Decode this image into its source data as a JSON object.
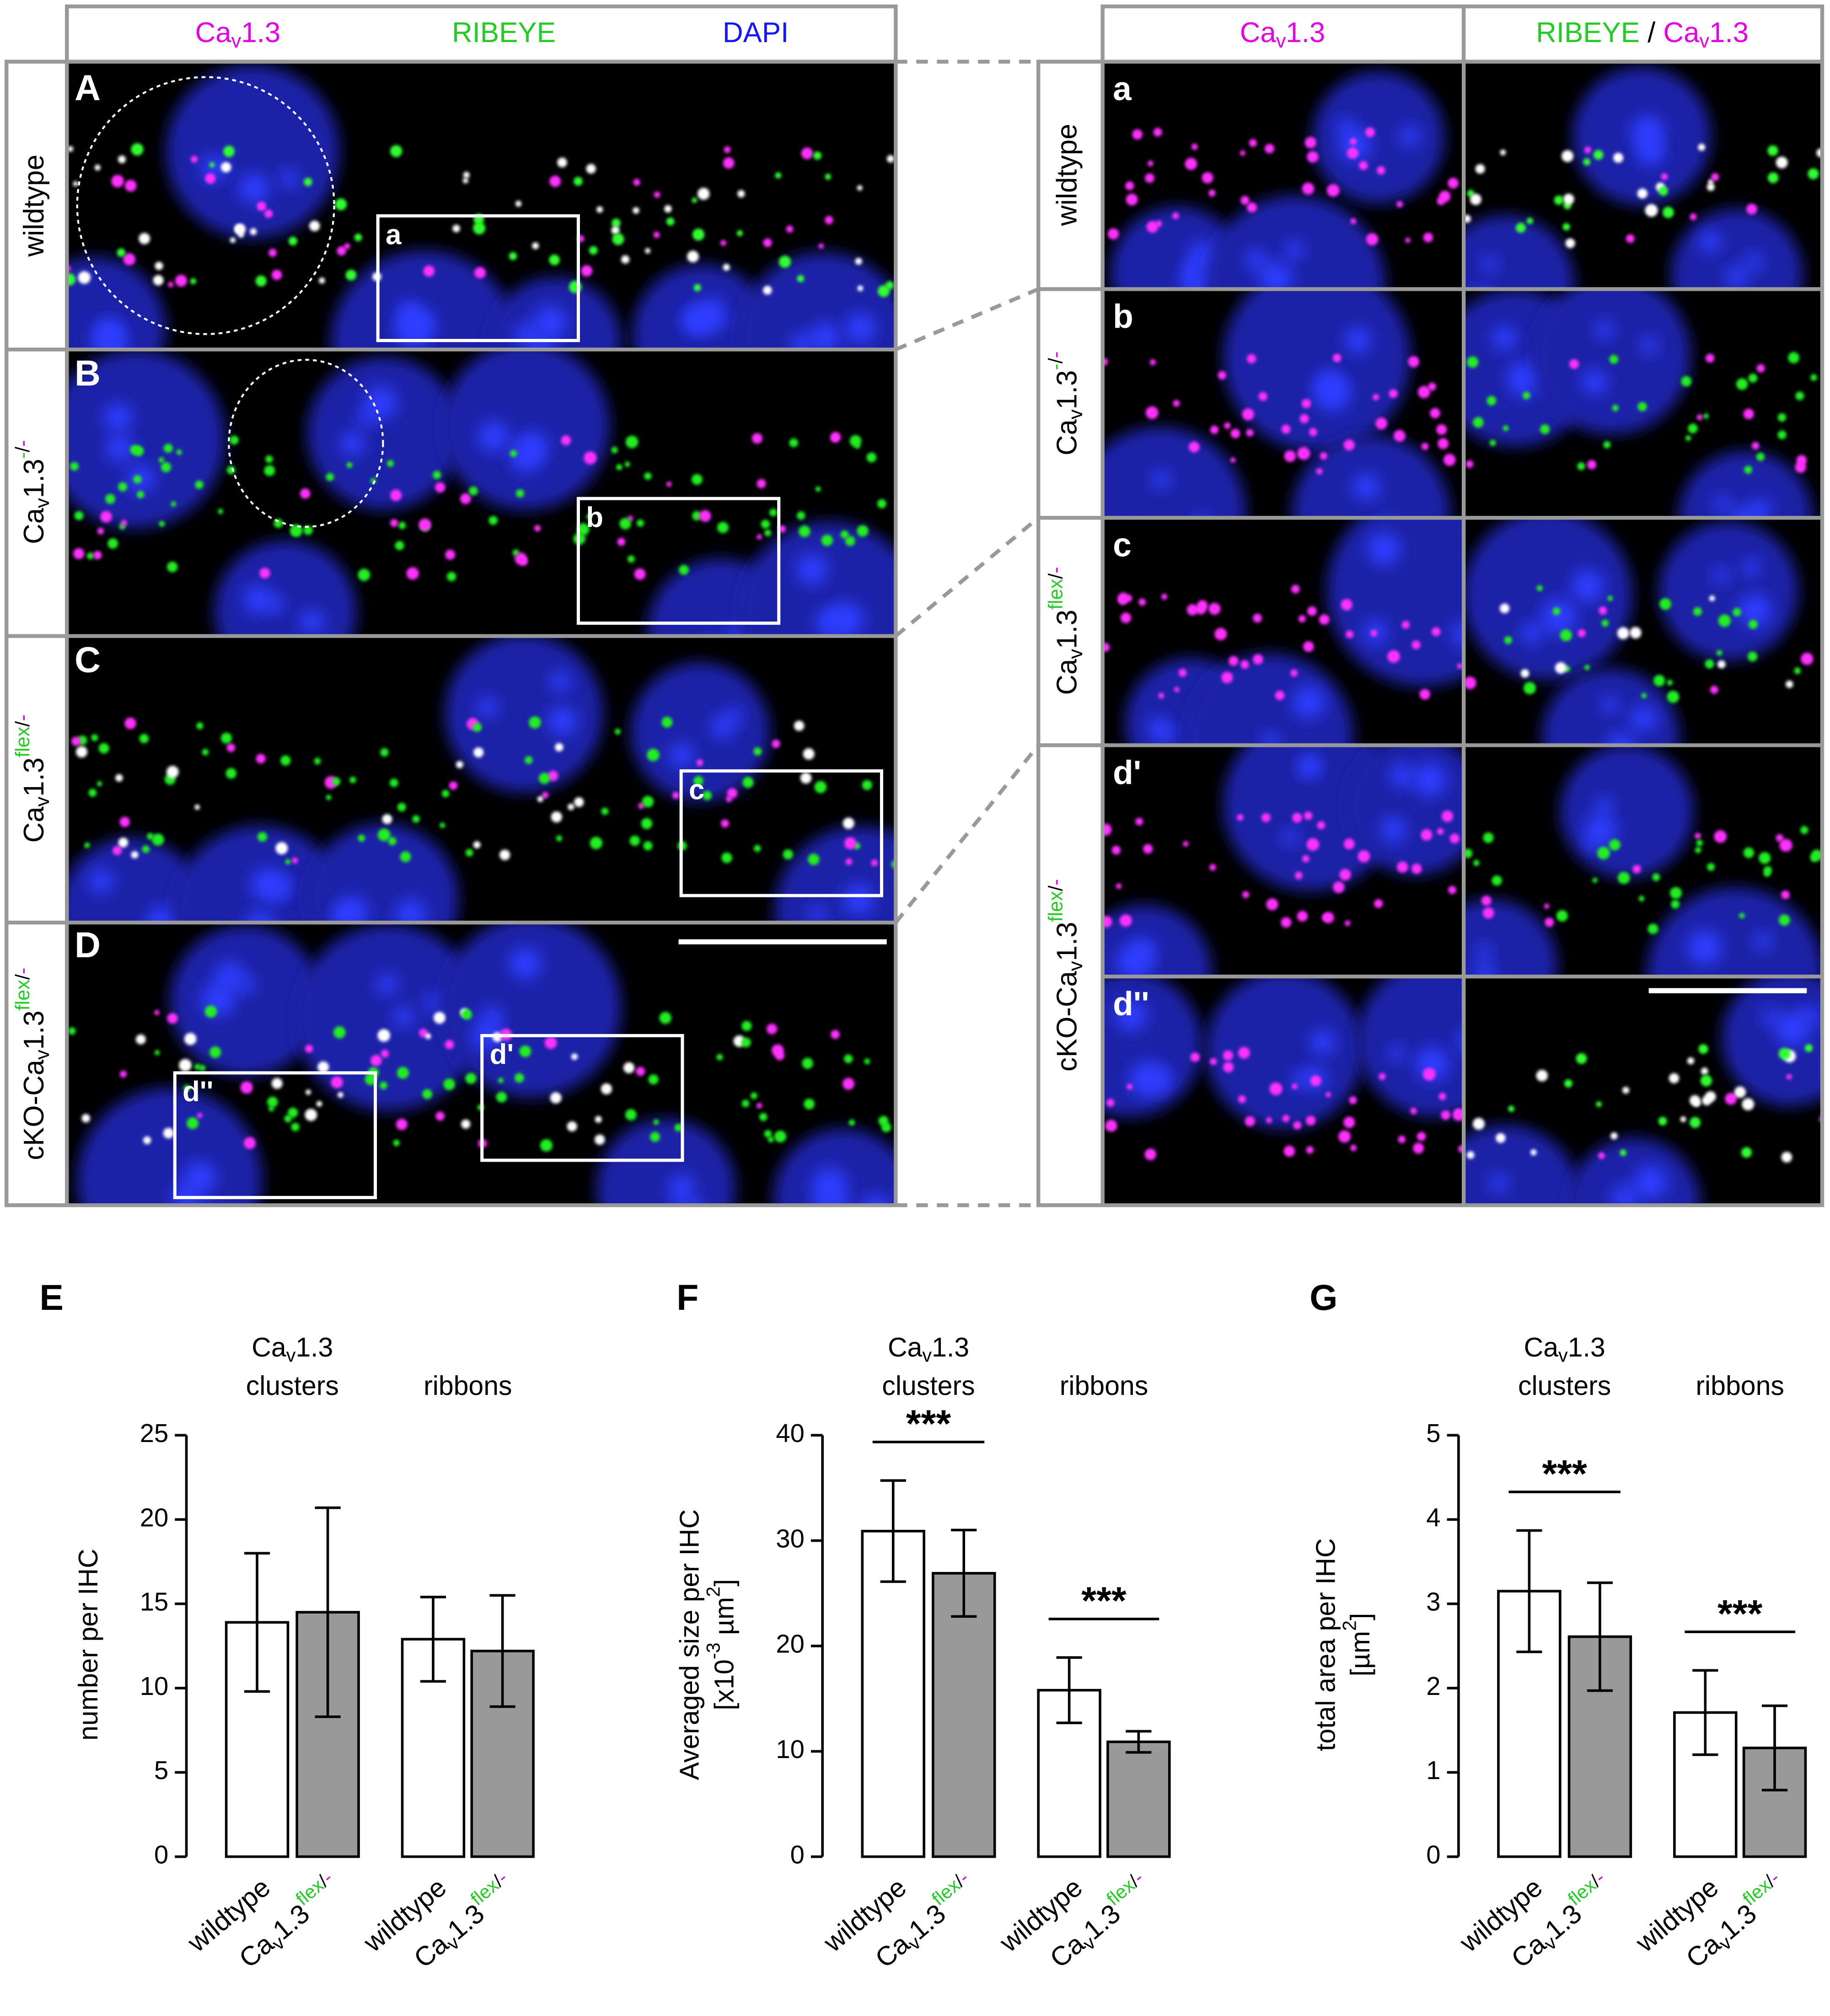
{
  "figure": {
    "left_header": [
      [
        {
          "t": "Ca",
          "c": "#e600e6"
        },
        {
          "t": "v",
          "c": "#e600e6",
          "s": "sub"
        },
        {
          "t": "1.3",
          "c": "#e600e6"
        }
      ],
      [
        {
          "t": "RIBEYE",
          "c": "#22cc22"
        }
      ],
      [
        {
          "t": "DAPI",
          "c": "#1414ff"
        }
      ]
    ],
    "right_header": [
      [
        {
          "t": "Ca",
          "c": "#e600e6"
        },
        {
          "t": "v",
          "c": "#e600e6",
          "s": "sub"
        },
        {
          "t": "1.3",
          "c": "#e600e6"
        }
      ],
      [
        {
          "t": "RIBEYE",
          "c": "#22cc22"
        },
        {
          "t": " / "
        },
        {
          "t": "Ca",
          "c": "#e600e6"
        },
        {
          "t": "v",
          "c": "#e600e6",
          "s": "sub"
        },
        {
          "t": "1.3",
          "c": "#e600e6"
        }
      ]
    ],
    "panels": [
      {
        "letter": "A",
        "label": [
          {
            "t": "wildtype"
          }
        ]
      },
      {
        "letter": "B",
        "label": [
          {
            "t": "Ca"
          },
          {
            "t": "v",
            "s": "sub"
          },
          {
            "t": "1.3"
          },
          {
            "t": "-",
            "c": "#22cc22",
            "s": "sup"
          },
          {
            "t": "/",
            "s": "sup"
          },
          {
            "t": "-",
            "c": "#e600e6",
            "s": "sup"
          }
        ]
      },
      {
        "letter": "C",
        "label": [
          {
            "t": "Ca"
          },
          {
            "t": "v",
            "s": "sub"
          },
          {
            "t": "1.3"
          },
          {
            "t": "flex",
            "c": "#22cc22",
            "s": "sup"
          },
          {
            "t": "/",
            "s": "sup"
          },
          {
            "t": "-",
            "c": "#e600e6",
            "s": "sup"
          }
        ]
      },
      {
        "letter": "D",
        "label": [
          {
            "t": "cKO-Ca"
          },
          {
            "t": "v",
            "s": "sub"
          },
          {
            "t": "1.3"
          },
          {
            "t": "flex",
            "c": "#22cc22",
            "s": "sup"
          },
          {
            "t": "/",
            "s": "sup"
          },
          {
            "t": "-",
            "c": "#e600e6",
            "s": "sup"
          }
        ]
      }
    ],
    "insets": [
      "a",
      "b",
      "c",
      "d''",
      "d'"
    ],
    "right_rows": [
      "a",
      "b",
      "c",
      "d'",
      "d''"
    ],
    "right_labels": [
      [
        {
          "t": "wildtype"
        }
      ],
      [
        {
          "t": "Ca"
        },
        {
          "t": "v",
          "s": "sub"
        },
        {
          "t": "1.3"
        },
        {
          "t": "-",
          "c": "#22cc22",
          "s": "sup"
        },
        {
          "t": "/",
          "s": "sup"
        },
        {
          "t": "-",
          "c": "#e600e6",
          "s": "sup"
        }
      ],
      [
        {
          "t": "Ca"
        },
        {
          "t": "v",
          "s": "sub"
        },
        {
          "t": "1.3"
        },
        {
          "t": "flex",
          "c": "#22cc22",
          "s": "sup"
        },
        {
          "t": "/",
          "s": "sup"
        },
        {
          "t": "-",
          "c": "#e600e6",
          "s": "sup"
        }
      ],
      [
        {
          "t": "cKO-Ca"
        },
        {
          "t": "v",
          "s": "sub"
        },
        {
          "t": "1.3"
        },
        {
          "t": "flex",
          "c": "#22cc22",
          "s": "sup"
        },
        {
          "t": "/",
          "s": "sup"
        },
        {
          "t": "-",
          "c": "#e600e6",
          "s": "sup"
        }
      ]
    ]
  },
  "chart_data": [
    {
      "type": "bar",
      "panel": "E",
      "ylabel": [
        [
          {
            "t": "number per IHC"
          }
        ]
      ],
      "group_labels": [
        [
          [
            {
              "t": "Ca"
            },
            {
              "t": "v",
              "s": "sub"
            },
            {
              "t": "1.3"
            }
          ],
          [
            {
              "t": "clusters"
            }
          ]
        ],
        [
          [
            {
              "t": "ribbons"
            }
          ]
        ]
      ],
      "categories": [
        [
          {
            "t": "wildtype"
          }
        ],
        [
          {
            "t": "Ca"
          },
          {
            "t": "v",
            "s": "sub"
          },
          {
            "t": "1.3"
          },
          {
            "t": "flex",
            "c": "#22cc22",
            "s": "sup"
          },
          {
            "t": "/",
            "s": "sup"
          },
          {
            "t": "-",
            "c": "#e600e6",
            "s": "sup"
          }
        ],
        [
          {
            "t": "wildtype"
          }
        ],
        [
          {
            "t": "Ca"
          },
          {
            "t": "v",
            "s": "sub"
          },
          {
            "t": "1.3"
          },
          {
            "t": "flex",
            "c": "#22cc22",
            "s": "sup"
          },
          {
            "t": "/",
            "s": "sup"
          },
          {
            "t": "-",
            "c": "#e600e6",
            "s": "sup"
          }
        ]
      ],
      "values": [
        13.9,
        14.5,
        12.9,
        12.2
      ],
      "errors": [
        4.1,
        6.2,
        2.5,
        3.3
      ],
      "colors": [
        "#ffffff",
        "#999999",
        "#ffffff",
        "#999999"
      ],
      "annotations": [],
      "ylim": [
        0,
        25
      ],
      "yticks": [
        0,
        5,
        10,
        15,
        20,
        25
      ]
    },
    {
      "type": "bar",
      "panel": "F",
      "ylabel": [
        [
          {
            "t": "Averaged size per IHC"
          }
        ],
        [
          {
            "t": "[x10"
          },
          {
            "t": "-3",
            "s": "sup"
          },
          {
            "t": " µm"
          },
          {
            "t": "2",
            "s": "sup"
          },
          {
            "t": "]"
          }
        ]
      ],
      "group_labels": [
        [
          [
            {
              "t": "Ca"
            },
            {
              "t": "v",
              "s": "sub"
            },
            {
              "t": "1.3"
            }
          ],
          [
            {
              "t": "clusters"
            }
          ]
        ],
        [
          [
            {
              "t": "ribbons"
            }
          ]
        ]
      ],
      "categories": [
        [
          {
            "t": "wildtype"
          }
        ],
        [
          {
            "t": "Ca"
          },
          {
            "t": "v",
            "s": "sub"
          },
          {
            "t": "1.3"
          },
          {
            "t": "flex",
            "c": "#22cc22",
            "s": "sup"
          },
          {
            "t": "/",
            "s": "sup"
          },
          {
            "t": "-",
            "c": "#e600e6",
            "s": "sup"
          }
        ],
        [
          {
            "t": "wildtype"
          }
        ],
        [
          {
            "t": "Ca"
          },
          {
            "t": "v",
            "s": "sub"
          },
          {
            "t": "1.3"
          },
          {
            "t": "flex",
            "c": "#22cc22",
            "s": "sup"
          },
          {
            "t": "/",
            "s": "sup"
          },
          {
            "t": "-",
            "c": "#e600e6",
            "s": "sup"
          }
        ]
      ],
      "values": [
        30.9,
        26.9,
        15.8,
        10.9
      ],
      "errors": [
        4.8,
        4.1,
        3.1,
        1.0
      ],
      "colors": [
        "#ffffff",
        "#999999",
        "#ffffff",
        "#999999"
      ],
      "annotations": [
        "***",
        "***"
      ],
      "ylim": [
        0,
        40
      ],
      "yticks": [
        0,
        10,
        20,
        30,
        40
      ]
    },
    {
      "type": "bar",
      "panel": "G",
      "ylabel": [
        [
          {
            "t": "total area per IHC"
          }
        ],
        [
          {
            "t": "[µm"
          },
          {
            "t": "2",
            "s": "sup"
          },
          {
            "t": "]"
          }
        ]
      ],
      "group_labels": [
        [
          [
            {
              "t": "Ca"
            },
            {
              "t": "v",
              "s": "sub"
            },
            {
              "t": "1.3"
            }
          ],
          [
            {
              "t": "clusters"
            }
          ]
        ],
        [
          [
            {
              "t": "ribbons"
            }
          ]
        ]
      ],
      "categories": [
        [
          {
            "t": "wildtype"
          }
        ],
        [
          {
            "t": "Ca"
          },
          {
            "t": "v",
            "s": "sub"
          },
          {
            "t": "1.3"
          },
          {
            "t": "flex",
            "c": "#22cc22",
            "s": "sup"
          },
          {
            "t": "/",
            "s": "sup"
          },
          {
            "t": "-",
            "c": "#e600e6",
            "s": "sup"
          }
        ],
        [
          {
            "t": "wildtype"
          }
        ],
        [
          {
            "t": "Ca"
          },
          {
            "t": "v",
            "s": "sub"
          },
          {
            "t": "1.3"
          },
          {
            "t": "flex",
            "c": "#22cc22",
            "s": "sup"
          },
          {
            "t": "/",
            "s": "sup"
          },
          {
            "t": "-",
            "c": "#e600e6",
            "s": "sup"
          }
        ]
      ],
      "values": [
        3.15,
        2.61,
        1.71,
        1.29
      ],
      "errors": [
        0.72,
        0.64,
        0.5,
        0.5
      ],
      "colors": [
        "#ffffff",
        "#999999",
        "#ffffff",
        "#999999"
      ],
      "annotations": [
        "***",
        "***"
      ],
      "ylim": [
        0,
        5
      ],
      "yticks": [
        0,
        1,
        2,
        3,
        4,
        5
      ]
    }
  ]
}
